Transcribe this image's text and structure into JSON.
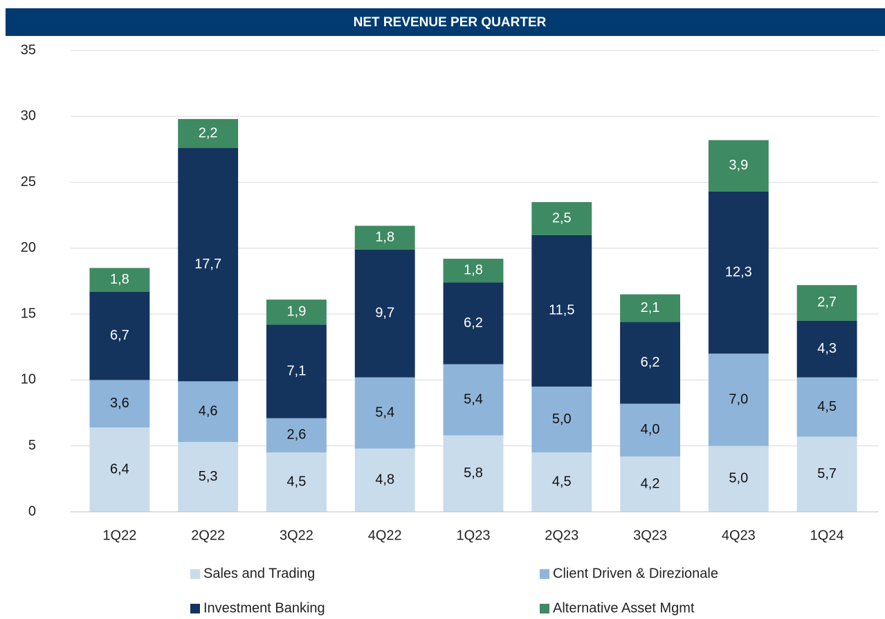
{
  "chart_data": {
    "type": "stacked_bar",
    "title": "NET REVENUE PER QUARTER",
    "categories": [
      "1Q22",
      "2Q22",
      "3Q22",
      "4Q22",
      "1Q23",
      "2Q23",
      "3Q23",
      "4Q23",
      "1Q24"
    ],
    "series": [
      {
        "name": "Sales and Trading",
        "color": "#c9dcec",
        "values": [
          6.4,
          5.3,
          4.5,
          4.8,
          5.8,
          4.5,
          4.2,
          5.0,
          5.7
        ],
        "value_labels": [
          "6,4",
          "5,3",
          "4,5",
          "4,8",
          "5,8",
          "4,5",
          "4,2",
          "5,0",
          "5,7"
        ]
      },
      {
        "name": "Client Driven & Direzionale",
        "color": "#8fb4d9",
        "values": [
          3.6,
          4.6,
          2.6,
          5.4,
          5.4,
          5.0,
          4.0,
          7.0,
          4.5
        ],
        "value_labels": [
          "3,6",
          "4,6",
          "2,6",
          "5,4",
          "5,4",
          "5,0",
          "4,0",
          "7,0",
          "4,5"
        ]
      },
      {
        "name": "Investment Banking",
        "color": "#14345e",
        "values": [
          6.7,
          17.7,
          7.1,
          9.7,
          6.2,
          11.5,
          6.2,
          12.3,
          4.3
        ],
        "value_labels": [
          "6,7",
          "17,7",
          "7,1",
          "9,7",
          "6,2",
          "11,5",
          "6,2",
          "12,3",
          "4,3"
        ]
      },
      {
        "name": "Alternative Asset Mgmt",
        "color": "#3e8a62",
        "values": [
          1.8,
          2.2,
          1.9,
          1.8,
          1.8,
          2.5,
          2.1,
          3.9,
          2.7
        ],
        "value_labels": [
          "1,8",
          "2,2",
          "1,9",
          "1,8",
          "1,8",
          "2,5",
          "2,1",
          "3,9",
          "2,7"
        ]
      }
    ],
    "ylim": [
      0,
      35
    ],
    "yticks": [
      0,
      5,
      10,
      15,
      20,
      25,
      30,
      35
    ],
    "grid": true
  }
}
